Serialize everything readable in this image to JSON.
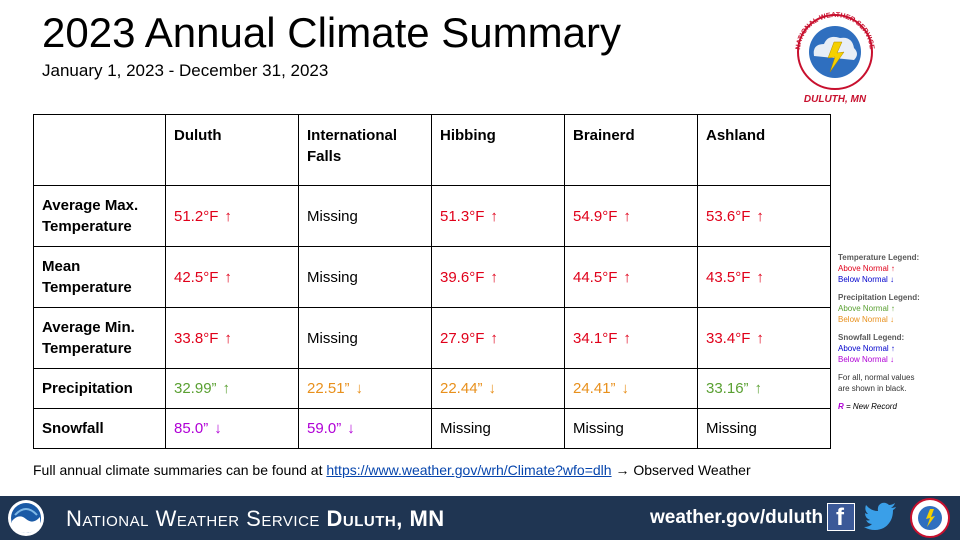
{
  "header": {
    "title": "2023 Annual Climate Summary",
    "subtitle": "January 1, 2023 - December 31, 2023",
    "logo_ring_text": "NATIONAL WEATHER SERVICE",
    "logo_bottom_text": "DULUTH, MN"
  },
  "table": {
    "columns": [
      "Duluth",
      "International Falls",
      "Hibbing",
      "Brainerd",
      "Ashland"
    ],
    "rows": [
      {
        "label": "Average Max. Temperature",
        "cells": [
          {
            "value": "51.2°F",
            "arrow": "↑",
            "color": "#e0001a"
          },
          {
            "value": "Missing",
            "arrow": "",
            "color": "#000000"
          },
          {
            "value": "51.3°F",
            "arrow": "↑",
            "color": "#e0001a"
          },
          {
            "value": "54.9°F",
            "arrow": "↑",
            "color": "#e0001a"
          },
          {
            "value": "53.6°F",
            "arrow": "↑",
            "color": "#e0001a"
          }
        ]
      },
      {
        "label": "Mean Temperature",
        "cells": [
          {
            "value": "42.5°F",
            "arrow": "↑",
            "color": "#e0001a"
          },
          {
            "value": "Missing",
            "arrow": "",
            "color": "#000000"
          },
          {
            "value": "39.6°F",
            "arrow": "↑",
            "color": "#e0001a"
          },
          {
            "value": "44.5°F",
            "arrow": "↑",
            "color": "#e0001a"
          },
          {
            "value": "43.5°F",
            "arrow": "↑",
            "color": "#e0001a"
          }
        ]
      },
      {
        "label": "Average Min. Temperature",
        "cells": [
          {
            "value": "33.8°F",
            "arrow": "↑",
            "color": "#e0001a"
          },
          {
            "value": "Missing",
            "arrow": "",
            "color": "#000000"
          },
          {
            "value": "27.9°F",
            "arrow": "↑",
            "color": "#e0001a"
          },
          {
            "value": "34.1°F",
            "arrow": "↑",
            "color": "#e0001a"
          },
          {
            "value": "33.4°F",
            "arrow": "↑",
            "color": "#e0001a"
          }
        ]
      },
      {
        "label": "Precipitation",
        "cells": [
          {
            "value": "32.99”",
            "arrow": "↑",
            "color": "#5aa032"
          },
          {
            "value": "22.51”",
            "arrow": "↓",
            "color": "#e8901c"
          },
          {
            "value": "22.44”",
            "arrow": "↓",
            "color": "#e8901c"
          },
          {
            "value": "24.41”",
            "arrow": "↓",
            "color": "#e8901c"
          },
          {
            "value": "33.16”",
            "arrow": "↑",
            "color": "#5aa032"
          }
        ]
      },
      {
        "label": "Snowfall",
        "cells": [
          {
            "value": "85.0”",
            "arrow": "↓",
            "color": "#b000d6"
          },
          {
            "value": "59.0”",
            "arrow": "↓",
            "color": "#b000d6"
          },
          {
            "value": "Missing",
            "arrow": "",
            "color": "#000000"
          },
          {
            "value": "Missing",
            "arrow": "",
            "color": "#000000"
          },
          {
            "value": "Missing",
            "arrow": "",
            "color": "#000000"
          }
        ]
      }
    ]
  },
  "legend": {
    "temperature": {
      "heading": "Temperature Legend:",
      "above": "Above Normal ↑",
      "above_color": "#e0001a",
      "below": "Below Normal ↓",
      "below_color": "#0000cc"
    },
    "precipitation": {
      "heading": "Precipitation Legend:",
      "above": "Above Normal ↑",
      "above_color": "#5aa032",
      "below": "Below Normal ↓",
      "below_color": "#e8901c"
    },
    "snowfall": {
      "heading": "Snowfall Legend:",
      "above": "Above Normal ↑",
      "above_color": "#0000cc",
      "below": "Below Normal ↓",
      "below_color": "#b000d6"
    },
    "note_line1": "For all, normal values",
    "note_line2": "are shown in black.",
    "record_r": "R",
    "record_text": " = New Record",
    "record_color": "#b000d6"
  },
  "footnote": {
    "prefix": "Full annual climate summaries can be found at ",
    "link": "https://www.weather.gov/wrh/Climate?wfo=dlh",
    "suffix": "  → Observed Weather"
  },
  "footer": {
    "office_prefix": "National Weather Service ",
    "office_bold": "Duluth, MN",
    "website": "weather.gov/duluth",
    "bar_color": "#1f3552"
  }
}
